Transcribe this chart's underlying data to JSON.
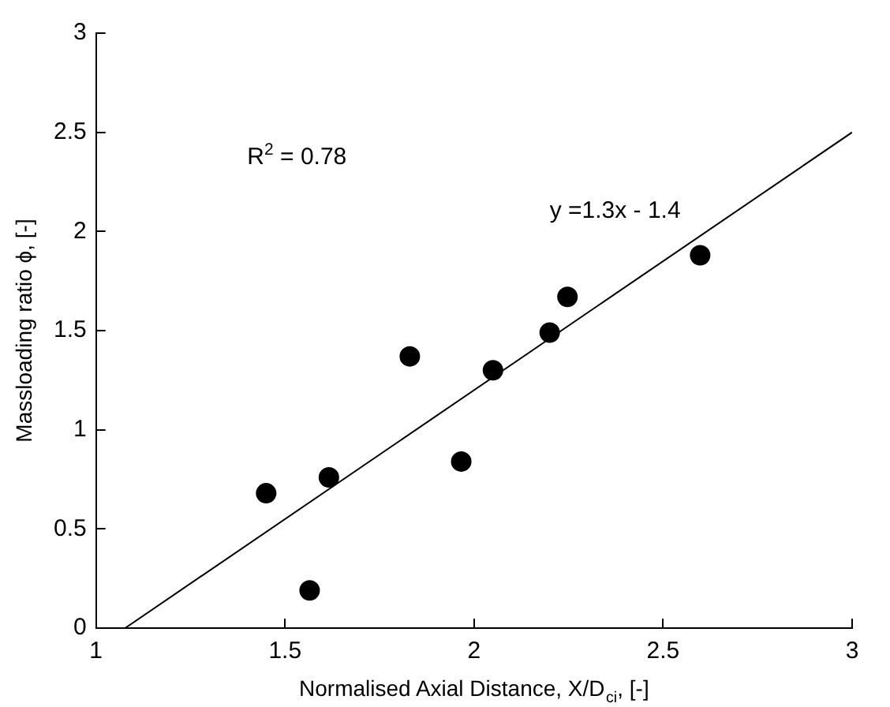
{
  "chart_data": {
    "type": "scatter",
    "xlabel": "Normalised Axial Distance, X/D$_{ci}$, [-]",
    "ylabel": "Massloading ratio ϕ, [-]",
    "annotations": [
      "R$^{2}$ = 0.78",
      "y =1.3x - 1.4"
    ],
    "series": [
      {
        "color": "#000000",
        "marker": "circle",
        "x": [
          1.45,
          1.565,
          1.616,
          1.83,
          1.966,
          2.05,
          2.2,
          2.247,
          2.598
        ],
        "values": [
          0.68,
          0.19,
          0.76,
          1.37,
          0.84,
          1.3,
          1.49,
          1.67,
          1.88
        ]
      },
      {
        "type": "line",
        "color": "#000000",
        "marker": "none",
        "line_style": "solid",
        "x": [
          1.077,
          3
        ],
        "values": [
          0,
          2.5
        ]
      }
    ],
    "xlim": [
      1,
      3
    ],
    "xticks": [
      1,
      1.5,
      2,
      2.5,
      3
    ],
    "ylim": [
      0,
      3
    ],
    "yticks": [
      0,
      0.5,
      1,
      1.5,
      2,
      2.5,
      3
    ],
    "grid": false,
    "legend": false
  }
}
